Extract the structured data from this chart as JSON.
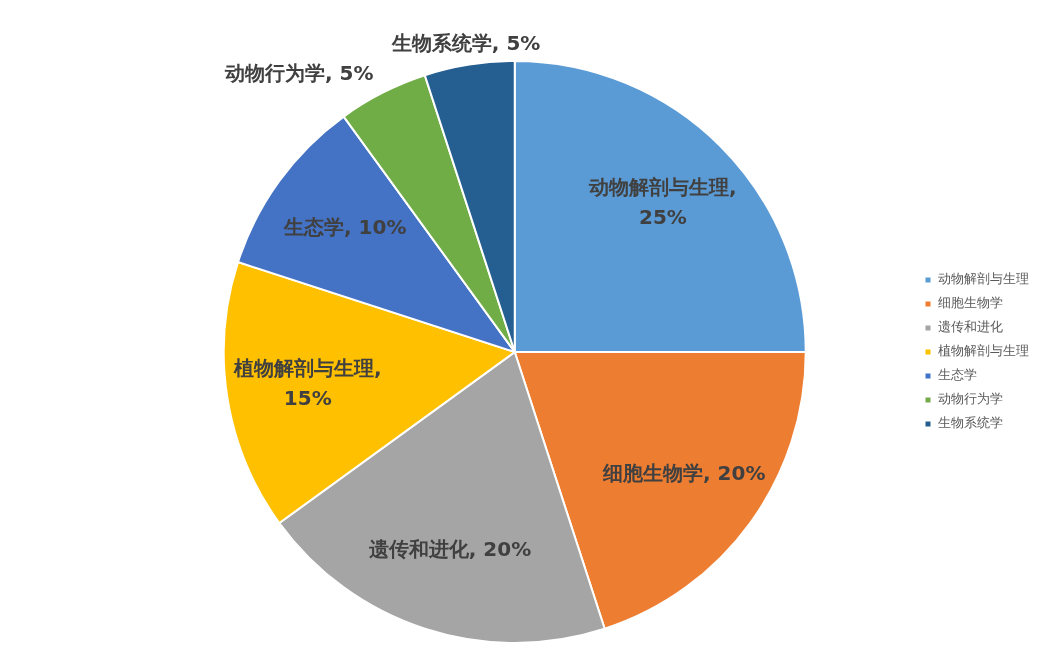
{
  "chart_data": {
    "type": "pie",
    "categories": [
      "动物解剖与生理",
      "细胞生物学",
      "遗传和进化",
      "植物解剖与生理",
      "生态学",
      "动物行为学",
      "生物系统学"
    ],
    "values": [
      25,
      20,
      20,
      15,
      10,
      5,
      5
    ],
    "colors": [
      "#5b9bd5",
      "#ed7d31",
      "#a5a5a5",
      "#ffc000",
      "#4472c4",
      "#70ad47",
      "#255e91"
    ],
    "value_labels": [
      "动物解剖与生理, 25%",
      "细胞生物学, 20%",
      "遗传和进化, 20%",
      "植物解剖与生理, 15%",
      "生态学, 10%",
      "动物行为学, 5%",
      "生物系统学, 5%"
    ],
    "legend": "right"
  }
}
